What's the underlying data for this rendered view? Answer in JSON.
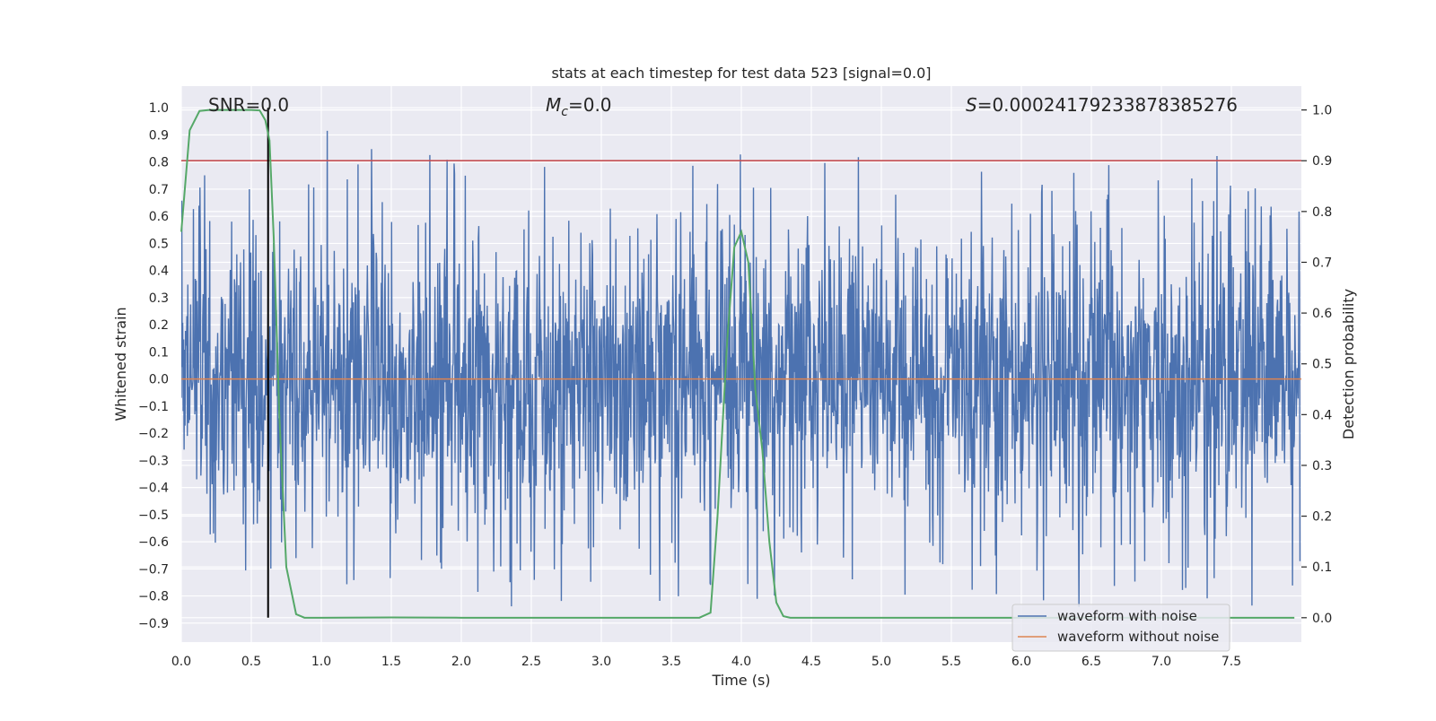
{
  "chart_data": {
    "type": "line",
    "title": "stats at each timestep for test data 523 [signal=0.0]",
    "xlabel": "Time (s)",
    "ylabel": "Whitened strain",
    "ylabel_right": "Detection probability",
    "xlim": [
      0.0,
      8.0
    ],
    "ylim": [
      -0.97,
      1.08
    ],
    "ylim_right": [
      -0.048,
      1.047
    ],
    "x_ticks": [
      "0.0",
      "0.5",
      "1.0",
      "1.5",
      "2.0",
      "2.5",
      "3.0",
      "3.5",
      "4.0",
      "4.5",
      "5.0",
      "5.5",
      "6.0",
      "6.5",
      "7.0",
      "7.5"
    ],
    "y_ticks": [
      "1.0",
      "0.9",
      "0.8",
      "0.7",
      "0.6",
      "0.5",
      "0.4",
      "0.3",
      "0.2",
      "0.1",
      "0.0",
      "-0.1",
      "-0.2",
      "-0.3",
      "-0.4",
      "-0.5",
      "-0.6",
      "-0.7",
      "-0.8",
      "-0.9"
    ],
    "y_ticks_right": [
      "1.0",
      "0.9",
      "0.8",
      "0.7",
      "0.6",
      "0.5",
      "0.4",
      "0.3",
      "0.2",
      "0.1",
      "0.0"
    ],
    "annotations": {
      "snr": "SNR=0.0",
      "mc_symbol": "M",
      "mc_sub": "c",
      "mc_value": "=0.0",
      "s_symbol": "S",
      "s_value": "=0.00024179233878385276"
    },
    "legend": [
      {
        "label": "waveform with noise",
        "color": "#4c72b0"
      },
      {
        "label": "waveform without noise",
        "color": "#dd8452"
      }
    ],
    "series": [
      {
        "name": "waveform with noise",
        "color": "#4c72b0",
        "description": "dense noise samples, approx range -0.85 to 1.0"
      },
      {
        "name": "waveform without noise",
        "color": "#dd8452",
        "value": 0.0
      },
      {
        "name": "detection probability",
        "axis": "right",
        "color": "#55a868",
        "x": [
          0.0,
          0.06,
          0.13,
          0.2,
          0.3,
          0.4,
          0.5,
          0.56,
          0.6,
          0.63,
          0.66,
          0.7,
          0.75,
          0.82,
          0.88,
          1.0,
          1.5,
          2.0,
          2.5,
          3.0,
          3.5,
          3.7,
          3.78,
          3.83,
          3.9,
          3.95,
          4.0,
          4.05,
          4.1,
          4.15,
          4.2,
          4.25,
          4.3,
          4.35,
          4.5,
          5.0,
          5.5,
          6.0,
          6.5,
          7.0,
          7.5,
          7.95
        ],
        "values": [
          0.76,
          0.96,
          0.998,
          1.0,
          1.0,
          1.0,
          1.0,
          0.999,
          0.98,
          0.94,
          0.75,
          0.4,
          0.1,
          0.007,
          0.0,
          0.0,
          0.0005,
          0.0,
          0.0,
          0.0,
          0.0,
          0.0,
          0.01,
          0.2,
          0.55,
          0.73,
          0.76,
          0.7,
          0.45,
          0.33,
          0.15,
          0.03,
          0.003,
          0.0,
          0.0,
          0.0,
          0.0,
          0.0,
          0.0,
          0.0,
          0.0,
          0.0
        ]
      },
      {
        "name": "threshold",
        "axis": "right",
        "color": "#c44e52",
        "value": 0.9
      }
    ],
    "vertical_marker": {
      "x": 0.62,
      "y_range": [
        -0.88,
        1.0
      ],
      "color": "#000000"
    }
  }
}
